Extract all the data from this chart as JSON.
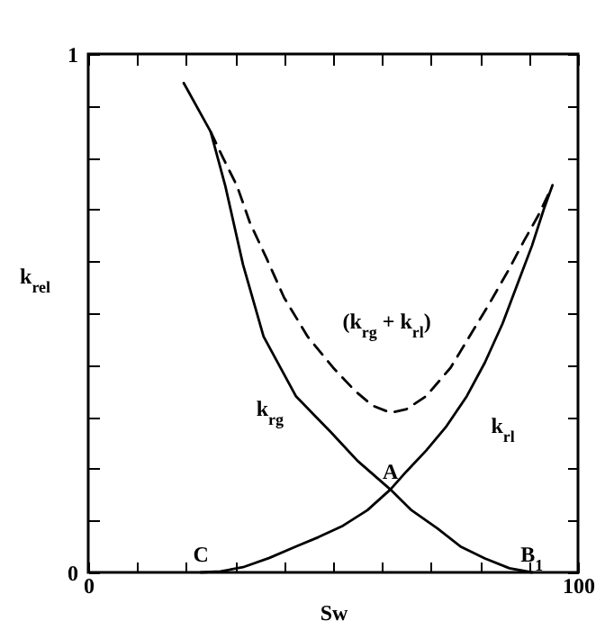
{
  "chart_data": {
    "type": "line",
    "xlabel": "Sw",
    "ylabel": "k$_{rel}$",
    "xlim": [
      0,
      100
    ],
    "ylim": [
      0,
      1
    ],
    "xticks": [
      0,
      {
        "value": 10,
        "label": null
      },
      {
        "value": 20,
        "label": null
      },
      {
        "value": 30,
        "label": null
      },
      {
        "value": 40,
        "label": null
      },
      {
        "value": 50,
        "label": null
      },
      {
        "value": 60,
        "label": null
      },
      {
        "value": 70,
        "label": null
      },
      {
        "value": 80,
        "label": null
      },
      {
        "value": 90,
        "label": null
      },
      100
    ],
    "yticks": [
      0,
      {
        "value": 0.1,
        "label": null
      },
      {
        "value": 0.2,
        "label": null
      },
      {
        "value": 0.3,
        "label": null
      },
      {
        "value": 0.4,
        "label": null
      },
      {
        "value": 0.5,
        "label": null
      },
      {
        "value": 0.6,
        "label": null
      },
      {
        "value": 0.7,
        "label": null
      },
      {
        "value": 0.8,
        "label": null
      },
      {
        "value": 0.9,
        "label": null
      },
      1
    ],
    "series": [
      {
        "name": "k$_{rg}$",
        "color": "#000000",
        "line_style": "solid",
        "x": [
          19.5,
          25,
          28,
          31.6,
          35.8,
          42.4,
          49.6,
          55,
          61.7,
          66,
          71.3,
          76,
          81,
          86,
          90.6
        ],
        "values": [
          0.944,
          0.85,
          0.745,
          0.594,
          0.455,
          0.34,
          0.27,
          0.215,
          0.16,
          0.12,
          0.085,
          0.05,
          0.027,
          0.008,
          0
        ]
      },
      {
        "name": "k$_{rl}$",
        "color": "#000000",
        "line_style": "solid",
        "x": [
          23,
          27,
          31.6,
          37,
          42.4,
          47,
          52,
          57,
          61.7,
          65,
          69,
          73,
          77.3,
          81,
          84.6,
          88,
          90.6,
          93,
          94.8
        ],
        "values": [
          0,
          0.002,
          0.01,
          0.028,
          0.05,
          0.068,
          0.09,
          0.12,
          0.16,
          0.195,
          0.235,
          0.28,
          0.34,
          0.405,
          0.48,
          0.565,
          0.63,
          0.7,
          0.747
        ]
      },
      {
        "name": "(k$_{rg}$ + k$_{rl}$)",
        "color": "#000000",
        "line_style": "dashed",
        "x": [
          25,
          27.5,
          30.4,
          33,
          36.4,
          40,
          44.8,
          50,
          54.5,
          58,
          61.7,
          65,
          69,
          74,
          78.6,
          82,
          85.8,
          89,
          91.8,
          94
        ],
        "values": [
          0.85,
          0.8,
          0.745,
          0.675,
          0.606,
          0.53,
          0.455,
          0.395,
          0.35,
          0.322,
          0.308,
          0.315,
          0.34,
          0.395,
          0.467,
          0.52,
          0.583,
          0.64,
          0.687,
          0.73
        ]
      }
    ],
    "annotations": [
      {
        "text": "A",
        "x": 61.7,
        "y": 0.16
      },
      {
        "text": "C",
        "x": 23,
        "y": 0
      },
      {
        "text": "B$_{1}$",
        "x": 90.6,
        "y": 0
      }
    ],
    "grid": false
  }
}
